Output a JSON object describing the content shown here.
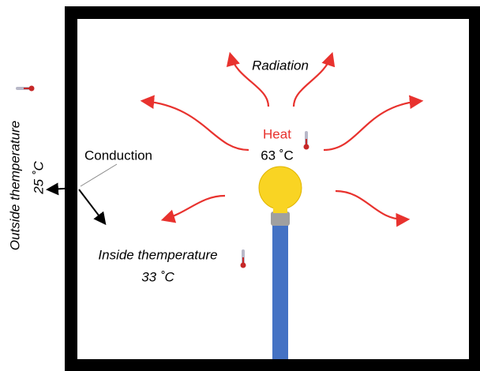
{
  "labels": {
    "radiation": "Radiation",
    "heat": "Heat",
    "heat_temperature": "63 ˚C",
    "conduction": "Conduction",
    "outside": "Outside themperature",
    "outside_temperature": "25 ˚C",
    "inside": "Inside themperature",
    "inside_temperature": "33 ˚C"
  }
}
